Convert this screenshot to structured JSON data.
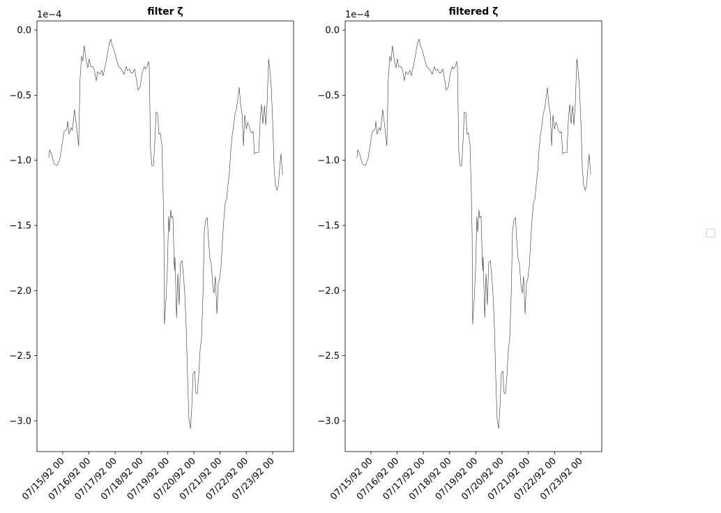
{
  "chart_data": [
    {
      "type": "line",
      "title": "filter ζ",
      "y_offset_label": "1e−4",
      "color": "#333333",
      "x": [
        14.47,
        14.5,
        14.57,
        14.68,
        14.79,
        14.89,
        14.97,
        15.05,
        15.16,
        15.19,
        15.24,
        15.32,
        15.37,
        15.45,
        15.51,
        15.61,
        15.66,
        15.72,
        15.77,
        15.82,
        15.9,
        15.96,
        16.01,
        16.06,
        16.14,
        16.2,
        16.28,
        16.33,
        16.41,
        16.49,
        16.54,
        16.62,
        16.7,
        16.78,
        16.84,
        16.89,
        16.97,
        17.07,
        17.13,
        17.23,
        17.34,
        17.42,
        17.47,
        17.55,
        17.61,
        17.66,
        17.74,
        17.82,
        17.87,
        17.95,
        18.03,
        18.11,
        18.16,
        18.22,
        18.27,
        18.3,
        18.35,
        18.4,
        18.46,
        18.51,
        18.56,
        18.62,
        18.67,
        18.72,
        18.78,
        18.83,
        18.86,
        18.88,
        18.94,
        18.99,
        19.04,
        19.07,
        19.12,
        19.15,
        19.2,
        19.26,
        19.28,
        19.34,
        19.39,
        19.44,
        19.49,
        19.55,
        19.6,
        19.65,
        19.71,
        19.76,
        19.81,
        19.87,
        19.92,
        19.97,
        20.03,
        20.08,
        20.13,
        20.19,
        20.24,
        20.29,
        20.35,
        20.4,
        20.45,
        20.51,
        20.56,
        20.61,
        20.67,
        20.72,
        20.77,
        20.82,
        20.88,
        20.93,
        20.98,
        21.04,
        21.09,
        21.14,
        21.2,
        21.25,
        21.3,
        21.36,
        21.41,
        21.46,
        21.52,
        21.57,
        21.62,
        21.68,
        21.73,
        21.78,
        21.84,
        21.89,
        21.94,
        22.0,
        22.05,
        22.1,
        22.15,
        22.21,
        22.26,
        22.31,
        22.37,
        22.42,
        22.47,
        22.53,
        22.58,
        22.63,
        22.69,
        22.74,
        22.79,
        22.85,
        22.9,
        22.95,
        23.01,
        23.06,
        23.11,
        23.17,
        23.22,
        23.27,
        23.32,
        23.38
      ],
      "values": [
        -0.98,
        -0.92,
        -0.95,
        -1.03,
        -1.04,
        -0.99,
        -0.89,
        -0.78,
        -0.76,
        -0.7,
        -0.8,
        -0.75,
        -0.77,
        -0.61,
        -0.71,
        -0.89,
        -0.39,
        -0.2,
        -0.24,
        -0.12,
        -0.24,
        -0.29,
        -0.22,
        -0.28,
        -0.28,
        -0.3,
        -0.39,
        -0.32,
        -0.34,
        -0.31,
        -0.35,
        -0.28,
        -0.19,
        -0.1,
        -0.07,
        -0.12,
        -0.16,
        -0.24,
        -0.28,
        -0.3,
        -0.34,
        -0.28,
        -0.31,
        -0.3,
        -0.33,
        -0.33,
        -0.3,
        -0.39,
        -0.46,
        -0.44,
        -0.33,
        -0.28,
        -0.3,
        -0.28,
        -0.24,
        -0.29,
        -0.92,
        -1.04,
        -1.04,
        -0.87,
        -0.63,
        -0.64,
        -0.8,
        -0.79,
        -0.88,
        -1.27,
        -1.59,
        -2.26,
        -2.06,
        -1.83,
        -1.43,
        -1.55,
        -1.38,
        -1.44,
        -1.43,
        -1.85,
        -1.74,
        -2.21,
        -1.87,
        -2.11,
        -1.79,
        -1.77,
        -1.87,
        -2.01,
        -2.29,
        -2.66,
        -2.98,
        -3.06,
        -2.9,
        -2.64,
        -2.62,
        -2.79,
        -2.79,
        -2.64,
        -2.45,
        -2.37,
        -2.02,
        -1.54,
        -1.46,
        -1.44,
        -1.62,
        -1.75,
        -1.81,
        -1.96,
        -2.02,
        -1.89,
        -2.18,
        -1.94,
        -1.91,
        -1.81,
        -1.62,
        -1.46,
        -1.32,
        -1.3,
        -1.19,
        -1.08,
        -0.92,
        -0.81,
        -0.73,
        -0.64,
        -0.61,
        -0.52,
        -0.44,
        -0.57,
        -0.65,
        -0.89,
        -0.65,
        -0.76,
        -0.71,
        -0.73,
        -0.77,
        -0.79,
        -0.78,
        -0.95,
        -0.94,
        -0.94,
        -0.94,
        -0.68,
        -0.57,
        -0.72,
        -0.58,
        -0.73,
        -0.57,
        -0.22,
        -0.31,
        -0.44,
        -0.73,
        -1.06,
        -1.19,
        -1.23,
        -1.19,
        -1.06,
        -0.95,
        -1.11
      ],
      "xlim": [
        14.02,
        23.8
      ],
      "xticks": [
        {
          "value": 15,
          "label": "07/15/92 00"
        },
        {
          "value": 16,
          "label": "07/16/92 00"
        },
        {
          "value": 17,
          "label": "07/17/92 00"
        },
        {
          "value": 18,
          "label": "07/18/92 00"
        },
        {
          "value": 19,
          "label": "07/19/92 00"
        },
        {
          "value": 20,
          "label": "07/20/92 00"
        },
        {
          "value": 21,
          "label": "07/21/92 00"
        },
        {
          "value": 22,
          "label": "07/22/92 00"
        },
        {
          "value": 23,
          "label": "07/23/92 00"
        }
      ],
      "ylim": [
        -3.236,
        0.07
      ],
      "yticks": [
        {
          "value": 0,
          "label": "0.0"
        },
        {
          "value": -0.5,
          "label": "−0.5"
        },
        {
          "value": -1,
          "label": "−1.0"
        },
        {
          "value": -1.5,
          "label": "−1.5"
        },
        {
          "value": -2,
          "label": "−2.0"
        },
        {
          "value": -2.5,
          "label": "−2.5"
        },
        {
          "value": -3,
          "label": "−3.0"
        }
      ]
    },
    {
      "type": "line",
      "title": "filtered ζ",
      "y_offset_label": "1e−4",
      "color": "#333333",
      "x": [
        14.47,
        14.5,
        14.57,
        14.68,
        14.79,
        14.89,
        14.97,
        15.05,
        15.16,
        15.19,
        15.24,
        15.32,
        15.37,
        15.45,
        15.51,
        15.61,
        15.66,
        15.72,
        15.77,
        15.82,
        15.9,
        15.96,
        16.01,
        16.06,
        16.14,
        16.2,
        16.28,
        16.33,
        16.41,
        16.49,
        16.54,
        16.62,
        16.7,
        16.78,
        16.84,
        16.89,
        16.97,
        17.07,
        17.13,
        17.23,
        17.34,
        17.42,
        17.47,
        17.55,
        17.61,
        17.66,
        17.74,
        17.82,
        17.87,
        17.95,
        18.03,
        18.11,
        18.16,
        18.22,
        18.27,
        18.3,
        18.35,
        18.4,
        18.46,
        18.51,
        18.56,
        18.62,
        18.67,
        18.72,
        18.78,
        18.83,
        18.86,
        18.88,
        18.94,
        18.99,
        19.04,
        19.07,
        19.12,
        19.15,
        19.2,
        19.26,
        19.28,
        19.34,
        19.39,
        19.44,
        19.49,
        19.55,
        19.6,
        19.65,
        19.71,
        19.76,
        19.81,
        19.87,
        19.92,
        19.97,
        20.03,
        20.08,
        20.13,
        20.19,
        20.24,
        20.29,
        20.35,
        20.4,
        20.45,
        20.51,
        20.56,
        20.61,
        20.67,
        20.72,
        20.77,
        20.82,
        20.88,
        20.93,
        20.98,
        21.04,
        21.09,
        21.14,
        21.2,
        21.25,
        21.3,
        21.36,
        21.41,
        21.46,
        21.52,
        21.57,
        21.62,
        21.68,
        21.73,
        21.78,
        21.84,
        21.89,
        21.94,
        22.0,
        22.05,
        22.1,
        22.15,
        22.21,
        22.26,
        22.31,
        22.37,
        22.42,
        22.47,
        22.53,
        22.58,
        22.63,
        22.69,
        22.74,
        22.79,
        22.85,
        22.9,
        22.95,
        23.01,
        23.06,
        23.11,
        23.17,
        23.22,
        23.27,
        23.32,
        23.38
      ],
      "values": [
        -0.98,
        -0.92,
        -0.95,
        -1.03,
        -1.04,
        -0.99,
        -0.89,
        -0.78,
        -0.76,
        -0.7,
        -0.8,
        -0.75,
        -0.77,
        -0.61,
        -0.71,
        -0.89,
        -0.39,
        -0.2,
        -0.24,
        -0.12,
        -0.24,
        -0.29,
        -0.22,
        -0.28,
        -0.28,
        -0.3,
        -0.39,
        -0.32,
        -0.34,
        -0.31,
        -0.35,
        -0.28,
        -0.19,
        -0.1,
        -0.07,
        -0.12,
        -0.16,
        -0.24,
        -0.28,
        -0.3,
        -0.34,
        -0.28,
        -0.31,
        -0.3,
        -0.33,
        -0.33,
        -0.3,
        -0.39,
        -0.46,
        -0.44,
        -0.33,
        -0.28,
        -0.3,
        -0.28,
        -0.24,
        -0.29,
        -0.92,
        -1.04,
        -1.04,
        -0.87,
        -0.63,
        -0.64,
        -0.8,
        -0.79,
        -0.88,
        -1.27,
        -1.59,
        -2.26,
        -2.06,
        -1.83,
        -1.43,
        -1.55,
        -1.38,
        -1.44,
        -1.43,
        -1.85,
        -1.74,
        -2.21,
        -1.87,
        -2.11,
        -1.79,
        -1.77,
        -1.87,
        -2.01,
        -2.29,
        -2.66,
        -2.98,
        -3.06,
        -2.9,
        -2.64,
        -2.62,
        -2.79,
        -2.79,
        -2.64,
        -2.45,
        -2.37,
        -2.02,
        -1.54,
        -1.46,
        -1.44,
        -1.62,
        -1.75,
        -1.81,
        -1.96,
        -2.02,
        -1.89,
        -2.18,
        -1.94,
        -1.91,
        -1.81,
        -1.62,
        -1.46,
        -1.32,
        -1.3,
        -1.19,
        -1.08,
        -0.92,
        -0.81,
        -0.73,
        -0.64,
        -0.61,
        -0.52,
        -0.44,
        -0.57,
        -0.65,
        -0.89,
        -0.65,
        -0.76,
        -0.71,
        -0.73,
        -0.77,
        -0.79,
        -0.78,
        -0.95,
        -0.94,
        -0.94,
        -0.94,
        -0.68,
        -0.57,
        -0.72,
        -0.58,
        -0.73,
        -0.57,
        -0.22,
        -0.31,
        -0.44,
        -0.73,
        -1.06,
        -1.19,
        -1.23,
        -1.19,
        -1.06,
        -0.95,
        -1.11
      ],
      "xlim": [
        14.02,
        23.8
      ],
      "xticks": [
        {
          "value": 15,
          "label": "07/15/92 00"
        },
        {
          "value": 16,
          "label": "07/16/92 00"
        },
        {
          "value": 17,
          "label": "07/17/92 00"
        },
        {
          "value": 18,
          "label": "07/18/92 00"
        },
        {
          "value": 19,
          "label": "07/19/92 00"
        },
        {
          "value": 20,
          "label": "07/20/92 00"
        },
        {
          "value": 21,
          "label": "07/21/92 00"
        },
        {
          "value": 22,
          "label": "07/22/92 00"
        },
        {
          "value": 23,
          "label": "07/23/92 00"
        }
      ],
      "ylim": [
        -3.236,
        0.07
      ],
      "yticks": [
        {
          "value": 0,
          "label": "0.0"
        },
        {
          "value": -0.5,
          "label": "−0.5"
        },
        {
          "value": -1,
          "label": "−1.0"
        },
        {
          "value": -1.5,
          "label": "−1.5"
        },
        {
          "value": -2,
          "label": "−2.0"
        },
        {
          "value": -2.5,
          "label": "−2.5"
        },
        {
          "value": -3,
          "label": "−3.0"
        }
      ]
    }
  ]
}
